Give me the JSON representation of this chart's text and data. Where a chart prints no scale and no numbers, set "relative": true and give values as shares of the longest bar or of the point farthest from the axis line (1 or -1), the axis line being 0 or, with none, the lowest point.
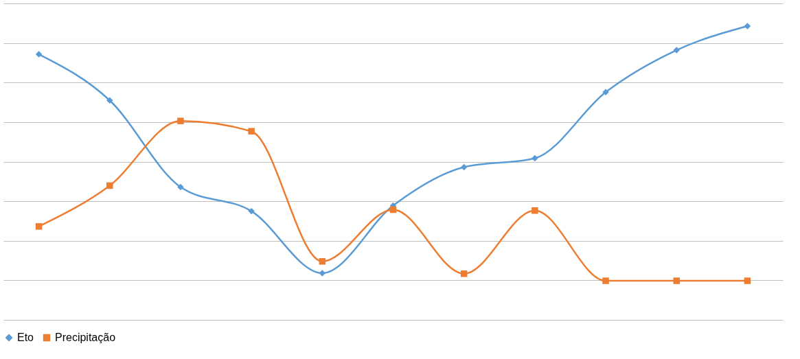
{
  "chart_data": {
    "type": "line",
    "relative": true,
    "categories": [
      null,
      null,
      null,
      null,
      null,
      null,
      null,
      null,
      null,
      null,
      null
    ],
    "series": [
      {
        "name": "Eto",
        "color": "#5b9bd5",
        "marker": "diamond",
        "values": [
          0.904,
          0.747,
          0.452,
          0.37,
          0.159,
          0.389,
          0.52,
          0.55,
          0.775,
          0.918,
          1.0
        ]
      },
      {
        "name": "Precipitação",
        "color": "#ed7d31",
        "marker": "square",
        "values": [
          0.318,
          0.457,
          0.677,
          0.642,
          0.199,
          0.375,
          0.157,
          0.372,
          0.133,
          0.133,
          0.133
        ]
      }
    ],
    "grid": "y",
    "legend": "bottom",
    "line_style": "solid"
  }
}
